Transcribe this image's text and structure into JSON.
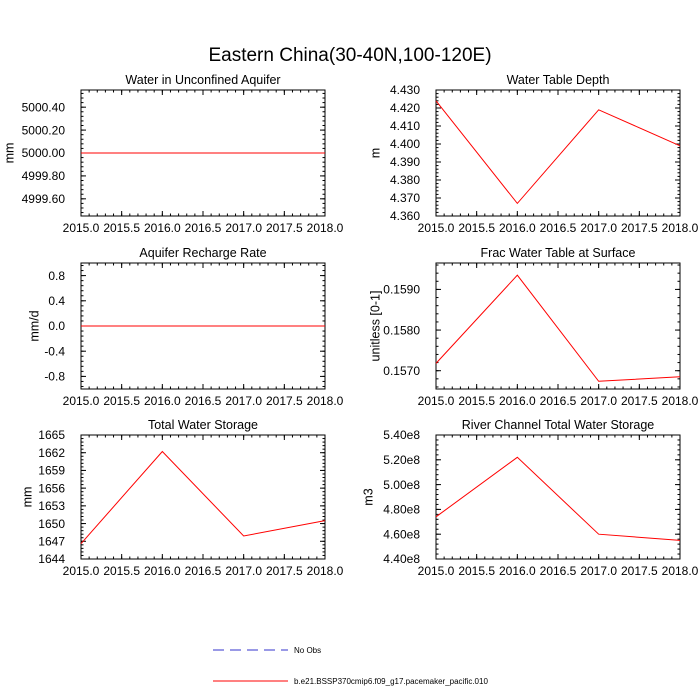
{
  "figure": {
    "title": "Eastern China(30-40N,100-120E)"
  },
  "legend": {
    "entries": [
      {
        "label": "No Obs",
        "color": "#3333cc",
        "style": "dashed"
      },
      {
        "label": "b.e21.BSSP370cmip6.f09_g17.pacemaker_pacific.010",
        "color": "#ff0000",
        "style": "solid"
      }
    ]
  },
  "chart_data": [
    {
      "type": "line",
      "title": "Water in Unconfined Aquifer",
      "ylabel": "mm",
      "xlim": [
        2015.0,
        2018.0
      ],
      "xticks": [
        "2015.0",
        "2015.5",
        "2016.0",
        "2016.5",
        "2017.0",
        "2017.5",
        "2018.0"
      ],
      "ylim": [
        4999.45,
        5000.55
      ],
      "yticks": [
        "4999.60",
        "4999.80",
        "5000.00",
        "5000.20",
        "5000.40"
      ],
      "series": [
        {
          "x": [
            2015,
            2016,
            2017,
            2018
          ],
          "values": [
            5000.0,
            5000.0,
            5000.0,
            5000.0
          ]
        }
      ]
    },
    {
      "type": "line",
      "title": "Water Table Depth",
      "ylabel": "m",
      "xlim": [
        2015.0,
        2018.0
      ],
      "xticks": [
        "2015.0",
        "2015.5",
        "2016.0",
        "2016.5",
        "2017.0",
        "2017.5",
        "2018.0"
      ],
      "ylim": [
        4.36,
        4.43
      ],
      "yticks": [
        "4.360",
        "4.370",
        "4.380",
        "4.390",
        "4.400",
        "4.410",
        "4.420",
        "4.430"
      ],
      "series": [
        {
          "x": [
            2015,
            2016,
            2017,
            2018
          ],
          "values": [
            4.424,
            4.367,
            4.419,
            4.399
          ]
        }
      ]
    },
    {
      "type": "line",
      "title": "Aquifer Recharge Rate",
      "ylabel": "mm/d",
      "xlim": [
        2015.0,
        2018.0
      ],
      "xticks": [
        "2015.0",
        "2015.5",
        "2016.0",
        "2016.5",
        "2017.0",
        "2017.5",
        "2018.0"
      ],
      "ylim": [
        -1.0,
        1.0
      ],
      "yticks": [
        "-0.8",
        "-0.4",
        "0.0",
        "0.4",
        "0.8"
      ],
      "series": [
        {
          "x": [
            2015,
            2016,
            2017,
            2018
          ],
          "values": [
            0.0,
            0.0,
            0.0,
            0.0
          ]
        }
      ]
    },
    {
      "type": "line",
      "title": "Frac Water Table at Surface",
      "ylabel": "unitless [0-1]",
      "xlim": [
        2015.0,
        2018.0
      ],
      "xticks": [
        "2015.0",
        "2015.5",
        "2016.0",
        "2016.5",
        "2017.0",
        "2017.5",
        "2018.0"
      ],
      "ylim": [
        0.15655,
        0.15965
      ],
      "yticks": [
        "0.1570",
        "0.1580",
        "0.1590"
      ],
      "series": [
        {
          "x": [
            2015,
            2016,
            2017,
            2018
          ],
          "values": [
            0.15718,
            0.15935,
            0.15674,
            0.15685
          ]
        }
      ]
    },
    {
      "type": "line",
      "title": "Total Water Storage",
      "ylabel": "mm",
      "xlim": [
        2015.0,
        2018.0
      ],
      "xticks": [
        "2015.0",
        "2015.5",
        "2016.0",
        "2016.5",
        "2017.0",
        "2017.5",
        "2018.0"
      ],
      "ylim": [
        1644,
        1665
      ],
      "yticks": [
        "1644",
        "1647",
        "1650",
        "1653",
        "1656",
        "1659",
        "1662",
        "1665"
      ],
      "series": [
        {
          "x": [
            2015,
            2016,
            2017,
            2018
          ],
          "values": [
            1646.6,
            1662.2,
            1647.9,
            1650.5
          ]
        }
      ]
    },
    {
      "type": "line",
      "title": "River Channel Total Water Storage",
      "ylabel": "m3",
      "xlim": [
        2015.0,
        2018.0
      ],
      "xticks": [
        "2015.0",
        "2015.5",
        "2016.0",
        "2016.5",
        "2017.0",
        "2017.5",
        "2018.0"
      ],
      "ylim": [
        440000000,
        540000000
      ],
      "yticks": [
        "4.40e8",
        "4.60e8",
        "4.80e8",
        "5.00e8",
        "5.20e8",
        "5.40e8"
      ],
      "series": [
        {
          "x": [
            2015,
            2016,
            2017,
            2018
          ],
          "values": [
            474000000,
            522000000,
            460000000,
            455000000
          ]
        }
      ]
    }
  ]
}
